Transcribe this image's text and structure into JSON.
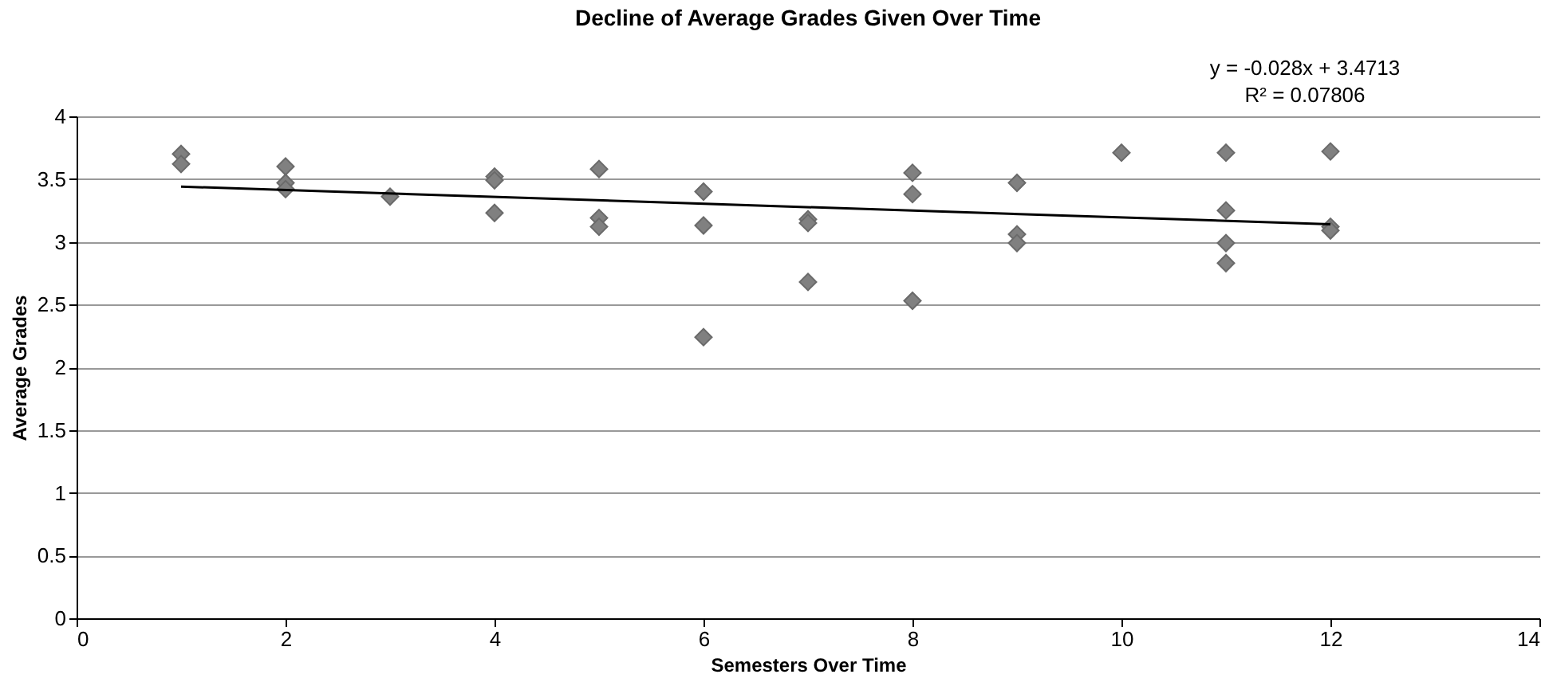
{
  "chart_data": {
    "type": "scatter",
    "title": "Decline of Average Grades Given Over Time",
    "xlabel": "Semesters Over Time",
    "ylabel": "Average Grades",
    "xlim": [
      0,
      14
    ],
    "xticks": [
      0,
      2,
      4,
      6,
      8,
      10,
      12,
      14
    ],
    "ylim": [
      0,
      4
    ],
    "yticks": [
      0,
      0.5,
      1,
      1.5,
      2,
      2.5,
      3,
      3.5,
      4
    ],
    "grid": "y",
    "legend": false,
    "marker": "diamond",
    "annotations": [
      "y = -0.028x + 3.4713",
      "R² = 0.07806"
    ],
    "series": [
      {
        "color": "#808080",
        "x": [
          1,
          1,
          2,
          2,
          2,
          3,
          4,
          4,
          4,
          5,
          5,
          5,
          6,
          6,
          6,
          7,
          7,
          7,
          8,
          8,
          8,
          9,
          9,
          9,
          10,
          11,
          11,
          11,
          11,
          12,
          12,
          12
        ],
        "values": [
          3.7,
          3.62,
          3.6,
          3.47,
          3.42,
          3.36,
          3.52,
          3.49,
          3.23,
          3.58,
          3.19,
          3.12,
          3.4,
          3.13,
          2.24,
          3.18,
          3.15,
          2.68,
          3.55,
          3.38,
          2.53,
          3.47,
          3.06,
          2.99,
          3.71,
          3.71,
          3.25,
          2.99,
          2.83,
          3.72,
          3.12,
          3.09
        ]
      },
      {
        "type": "line",
        "color": "#000000",
        "marker": "none",
        "x": [
          1,
          12
        ],
        "values": [
          3.44,
          3.14
        ]
      }
    ]
  }
}
